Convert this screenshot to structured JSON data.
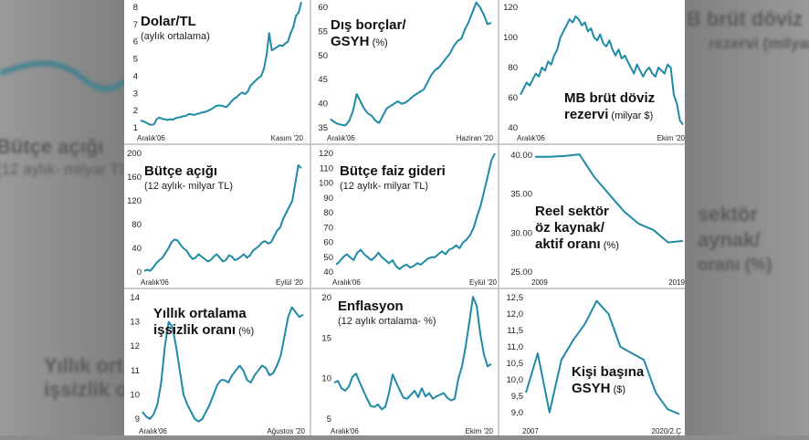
{
  "background": {
    "left_texts": [
      "Bütçe açığı",
      "(12 aylık- milyar TL)",
      "Yıllık ort",
      "işsizlik o"
    ],
    "right_texts": [
      "B brüt döviz",
      "rezervi (milyar $)",
      "sektör",
      "aynak/",
      "oranı (%)"
    ]
  },
  "style": {
    "line_color": "#1f8aa6",
    "text_color": "#222222",
    "divider_color": "#bdbdbd"
  },
  "chart_data": [
    {
      "id": "dolar-tl",
      "type": "line",
      "title": [
        "Dolar/TL"
      ],
      "subtitle": "(aylık ortalama)",
      "title_unit": "",
      "x_start": "Aralık'06",
      "x_end": "Kasım '20",
      "yticks": [
        "1",
        "2",
        "3",
        "4",
        "5",
        "6",
        "7",
        "8"
      ],
      "ylim": [
        1,
        8
      ],
      "values": [
        1.42,
        1.38,
        1.3,
        1.22,
        1.17,
        1.2,
        1.5,
        1.6,
        1.52,
        1.5,
        1.45,
        1.5,
        1.47,
        1.55,
        1.6,
        1.62,
        1.68,
        1.7,
        1.8,
        1.78,
        1.75,
        1.8,
        1.83,
        1.9,
        1.92,
        1.98,
        2.05,
        2.15,
        2.25,
        2.3,
        2.3,
        2.25,
        2.2,
        2.35,
        2.55,
        2.7,
        2.8,
        2.95,
        3.05,
        2.95,
        3.1,
        3.45,
        3.6,
        3.75,
        3.9,
        4.0,
        4.4,
        5.2,
        6.5,
        5.5,
        5.6,
        5.7,
        5.8,
        5.75,
        5.9,
        6.0,
        6.5,
        6.85,
        7.5,
        7.7,
        8.3
      ]
    },
    {
      "id": "dis-borclar",
      "type": "line",
      "title": [
        "Dış borçlar/",
        "GSYH"
      ],
      "subtitle": "",
      "title_unit": "(%)",
      "x_start": "Aralık'06",
      "x_end": "Haziran '20",
      "yticks": [
        "35",
        "40",
        "45",
        "50",
        "55",
        "60"
      ],
      "ylim": [
        35,
        60
      ],
      "values": [
        36.8,
        36.2,
        35.8,
        35.6,
        35.5,
        36.5,
        38.5,
        42.0,
        40.5,
        39.0,
        38.0,
        37.5,
        36.5,
        36.0,
        37.5,
        39.0,
        39.5,
        40.0,
        40.5,
        40.0,
        40.2,
        40.8,
        41.5,
        42.0,
        42.5,
        43.0,
        44.5,
        46.0,
        47.0,
        47.5,
        48.5,
        49.5,
        50.5,
        52.0,
        53.0,
        53.5,
        55.5,
        57.0,
        59.0,
        61.0,
        60.0,
        58.5,
        56.5,
        56.8
      ]
    },
    {
      "id": "mb-rezerv",
      "type": "line",
      "title": [
        "MB brüt döviz",
        "rezervi"
      ],
      "subtitle": "",
      "title_unit": "(milyar $)",
      "x_start": "Aralık'06",
      "x_end": "Ekim '20",
      "yticks": [
        "40",
        "60",
        "80",
        "100",
        "120"
      ],
      "ylim": [
        40,
        120
      ],
      "values": [
        62,
        66,
        70,
        68,
        72,
        76,
        74,
        80,
        78,
        84,
        82,
        88,
        92,
        100,
        104,
        108,
        112,
        110,
        114,
        112,
        108,
        110,
        104,
        106,
        100,
        98,
        102,
        96,
        94,
        98,
        92,
        88,
        92,
        86,
        88,
        84,
        80,
        76,
        82,
        78,
        74,
        78,
        80,
        76,
        74,
        80,
        78,
        76,
        82,
        80,
        62,
        56,
        45,
        42
      ]
    },
    {
      "id": "butce-acigi",
      "type": "line",
      "title": [
        "Bütçe açığı"
      ],
      "subtitle": "(12 aylık- milyar TL)",
      "title_unit": "",
      "x_start": "Aralık'06",
      "x_end": "Eylül '20",
      "yticks": [
        "0",
        "40",
        "80",
        "120",
        "160",
        "200"
      ],
      "ylim": [
        0,
        200
      ],
      "values": [
        2,
        4,
        2,
        8,
        15,
        20,
        24,
        32,
        40,
        50,
        55,
        53,
        46,
        40,
        36,
        28,
        22,
        24,
        30,
        26,
        22,
        18,
        20,
        26,
        30,
        24,
        18,
        20,
        28,
        26,
        20,
        22,
        26,
        30,
        24,
        28,
        36,
        40,
        44,
        50,
        52,
        48,
        50,
        60,
        70,
        75,
        90,
        100,
        110,
        120,
        150,
        180,
        175
      ]
    },
    {
      "id": "butce-faiz",
      "type": "line",
      "title": [
        "Bütçe faiz gideri"
      ],
      "subtitle": "(12 aylık- milyar TL)",
      "title_unit": "",
      "x_start": "Aralık'06",
      "x_end": "Eylül '20",
      "yticks": [
        "40",
        "50",
        "60",
        "70",
        "80",
        "90",
        "100",
        "110",
        "120"
      ],
      "ylim": [
        40,
        120
      ],
      "values": [
        45,
        47,
        50,
        52,
        50,
        48,
        53,
        55,
        52,
        50,
        48,
        50,
        53,
        50,
        48,
        46,
        48,
        44,
        42,
        44,
        45,
        43,
        44,
        46,
        45,
        47,
        49,
        50,
        50,
        52,
        54,
        52,
        55,
        56,
        58,
        56,
        60,
        62,
        65,
        70,
        78,
        85,
        95,
        105,
        115,
        120
      ]
    },
    {
      "id": "reel-sektor",
      "type": "line",
      "title": [
        "Reel sektör",
        "öz kaynak/",
        "aktif oranı"
      ],
      "subtitle": "",
      "title_unit": "(%)",
      "x_start": "2009",
      "x_end": "2019",
      "yticks": [
        "25.00",
        "30.00",
        "35.00",
        "40.00"
      ],
      "ylim": [
        25,
        40
      ],
      "values": [
        39.8,
        39.8,
        39.9,
        40.1,
        37.2,
        35.0,
        32.8,
        31.2,
        30.4,
        28.8,
        29.0
      ]
    },
    {
      "id": "issizlik",
      "type": "line",
      "title": [
        "Yıllık ortalama",
        "işsizlik oranı"
      ],
      "subtitle": "",
      "title_unit": "(%)",
      "x_start": "Aralık'06",
      "x_end": "Ağustos '20",
      "yticks": [
        "9",
        "10",
        "11",
        "12",
        "13",
        "14"
      ],
      "ylim": [
        9,
        14
      ],
      "values": [
        9.3,
        9.1,
        9.0,
        9.2,
        9.6,
        10.5,
        12.0,
        13.0,
        12.8,
        12.0,
        11.0,
        10.0,
        9.6,
        9.3,
        9.0,
        8.9,
        9.0,
        9.3,
        9.6,
        10.0,
        10.4,
        10.6,
        10.6,
        10.5,
        10.8,
        11.0,
        11.2,
        11.0,
        10.6,
        10.5,
        10.8,
        11.0,
        11.2,
        11.1,
        10.8,
        10.9,
        11.2,
        11.6,
        12.4,
        13.2,
        13.6,
        13.4,
        13.2,
        13.3
      ]
    },
    {
      "id": "enflasyon",
      "type": "line",
      "title": [
        "Enflasyon"
      ],
      "subtitle": "(12 aylık ortalama- %)",
      "title_unit": "",
      "x_start": "Aralık'06",
      "x_end": "Ekim '20",
      "yticks": [
        "5",
        "10",
        "15",
        "20"
      ],
      "ylim": [
        5,
        20
      ],
      "values": [
        9.5,
        9.7,
        8.8,
        8.5,
        9.0,
        10.2,
        10.6,
        9.5,
        8.5,
        7.5,
        6.6,
        6.5,
        6.8,
        6.2,
        6.5,
        8.2,
        10.5,
        9.5,
        8.5,
        7.6,
        7.5,
        8.0,
        8.5,
        7.7,
        8.8,
        7.8,
        8.2,
        7.5,
        7.8,
        8.0,
        8.2,
        7.6,
        7.3,
        7.5,
        10.0,
        11.5,
        14.0,
        17.0,
        20.1,
        19.0,
        15.5,
        13.0,
        11.5,
        11.8
      ]
    },
    {
      "id": "kisi-basina-gsyh",
      "type": "line",
      "title": [
        "Kişi başına",
        "GSYH"
      ],
      "subtitle": "",
      "title_unit": "($)",
      "x_start": "2007",
      "x_end": "2020/2.Ç",
      "yticks": [
        "9,0",
        "9,5",
        "10,0",
        "10,5",
        "11,0",
        "11,5",
        "12,0",
        "12,5"
      ],
      "ylim": [
        8.8,
        12.5
      ],
      "values": [
        9.6,
        10.8,
        9.0,
        10.6,
        11.2,
        11.7,
        12.4,
        12.0,
        11.0,
        10.8,
        10.6,
        9.6,
        9.1,
        8.95
      ]
    }
  ]
}
